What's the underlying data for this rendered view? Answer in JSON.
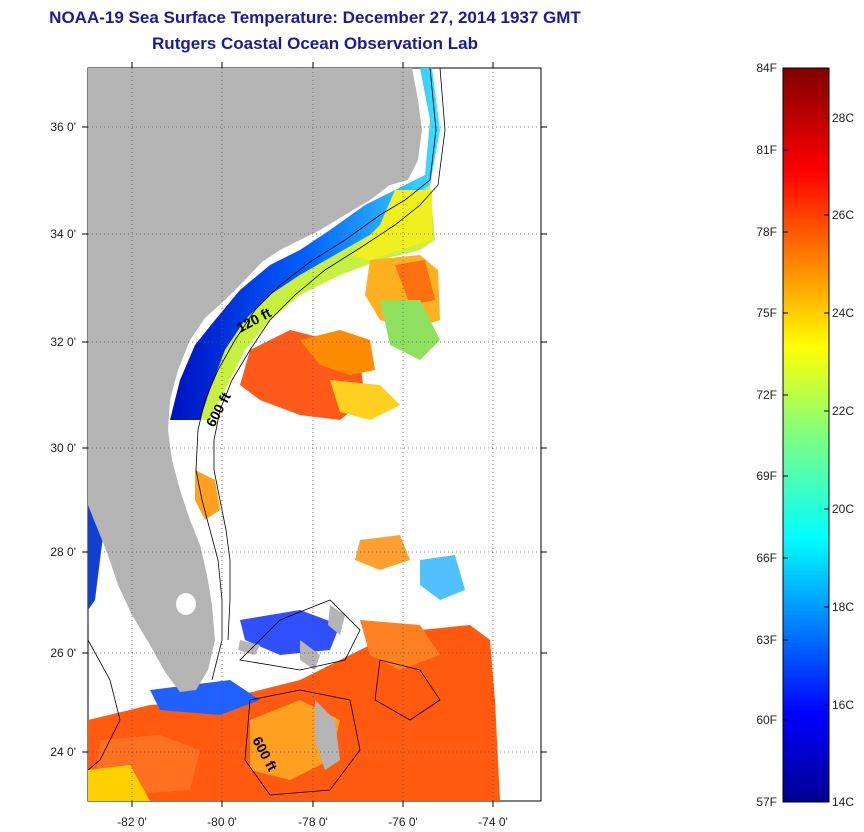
{
  "header": {
    "title": "NOAA-19 Sea Surface Temperature:  December 27, 2014 1937 GMT",
    "subtitle": "Rutgers Coastal Ocean Observation Lab"
  },
  "axes": {
    "lat_labels": [
      "36 0'",
      "34 0'",
      "32 0'",
      "30 0'",
      "28 0'",
      "26 0'",
      "24 0'"
    ],
    "lon_labels": [
      "-82 0'",
      "-80 0'",
      "-78 0'",
      "-76 0'",
      "-74 0'"
    ]
  },
  "contours": {
    "label_120": "120 ft",
    "label_600a": "600 ft",
    "label_600b": "600 ft"
  },
  "colorbar": {
    "f_labels": [
      "84F",
      "81F",
      "78F",
      "75F",
      "72F",
      "69F",
      "66F",
      "63F",
      "60F",
      "57F"
    ],
    "c_labels": [
      "28C",
      "26C",
      "24C",
      "22C",
      "20C",
      "18C",
      "16C",
      "14C"
    ]
  },
  "colors": {
    "land": "#b4b4b4",
    "title": "#1a1aa0"
  }
}
